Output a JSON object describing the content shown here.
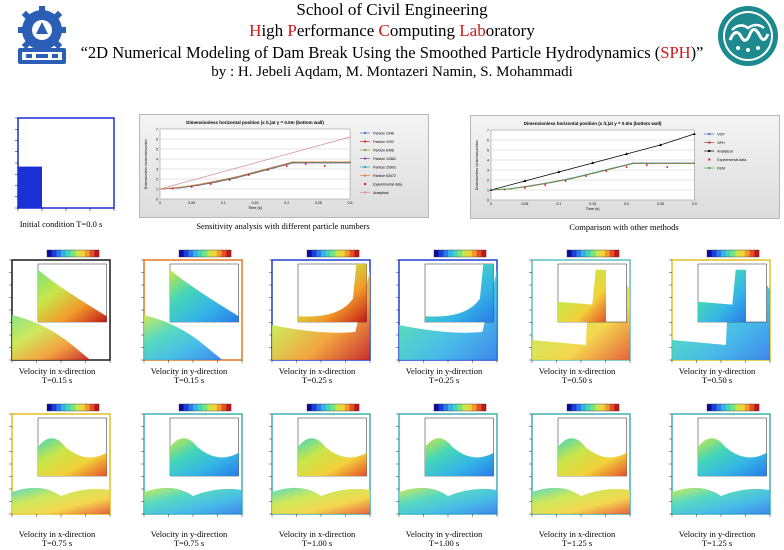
{
  "header": {
    "title_line1": "School of Civil Engineering",
    "lab": [
      {
        "t": "H",
        "red": true
      },
      {
        "t": "igh ",
        "red": false
      },
      {
        "t": "P",
        "red": true
      },
      {
        "t": "erformance ",
        "red": false
      },
      {
        "t": "C",
        "red": true
      },
      {
        "t": "omputing ",
        "red": false
      },
      {
        "t": "Lab",
        "red": true
      },
      {
        "t": "oratory",
        "red": false
      }
    ],
    "paper_title_pre": "“2D Numerical Modeling of Dam Break Using the Smoothed Particle Hydrodynamics (",
    "paper_title_acronym": "SPH",
    "paper_title_post": ")”",
    "authors": "by : H. Jebeli Aqdam, M. Montazeri Namin, S. Mohammadi"
  },
  "initial_condition": {
    "caption": "Initial condition T=0.0 s",
    "water_fraction_height": 0.46,
    "water_fraction_width": 0.25
  },
  "colors": {
    "blue": "#1a2fd6",
    "accent_red": "#d01818"
  },
  "chart_data": [
    {
      "type": "line",
      "title": "Dimensionless horizontal position (x /L)at y = 0.0m (bottom wall)",
      "caption": "Sensitivity analysis with different particle numbers",
      "xlabel": "Time (s)",
      "ylabel": "Dimensionless horizontal position",
      "xlim": [
        0,
        0.3
      ],
      "ylim": [
        0,
        7
      ],
      "xticks": [
        "0",
        "0.05",
        "0.1",
        "0.15",
        "0.2",
        "0.25",
        "0.3"
      ],
      "yticks": [
        "0",
        "1",
        "2",
        "3",
        "4",
        "5",
        "6",
        "7"
      ],
      "legend_position": "right",
      "series": [
        {
          "name": "Particle 1046",
          "color": "#4a6fd0",
          "x": [
            0,
            0.03,
            0.06,
            0.09,
            0.12,
            0.15,
            0.18,
            0.21,
            0.24,
            0.27,
            0.3
          ],
          "y": [
            1,
            1.1,
            1.35,
            1.7,
            2.1,
            2.6,
            3.1,
            3.6,
            3.6,
            3.6,
            3.6
          ]
        },
        {
          "name": "Particle 3192",
          "color": "#c03030",
          "x": [
            0,
            0.03,
            0.06,
            0.09,
            0.12,
            0.15,
            0.18,
            0.21,
            0.24,
            0.27,
            0.3
          ],
          "y": [
            1,
            1.12,
            1.38,
            1.72,
            2.12,
            2.62,
            3.12,
            3.62,
            3.62,
            3.62,
            3.62
          ]
        },
        {
          "name": "Particle 6498",
          "color": "#7aa040",
          "x": [
            0,
            0.03,
            0.06,
            0.09,
            0.12,
            0.15,
            0.18,
            0.21,
            0.24,
            0.27,
            0.3
          ],
          "y": [
            1,
            1.13,
            1.4,
            1.75,
            2.15,
            2.65,
            3.15,
            3.65,
            3.65,
            3.65,
            3.65
          ]
        },
        {
          "name": "Particle 12862",
          "color": "#7050a0",
          "x": [
            0,
            0.03,
            0.06,
            0.09,
            0.12,
            0.15,
            0.18,
            0.21,
            0.24,
            0.27,
            0.3
          ],
          "y": [
            1,
            1.14,
            1.42,
            1.77,
            2.18,
            2.68,
            3.18,
            3.68,
            3.68,
            3.68,
            3.68
          ]
        },
        {
          "name": "Particle 25992",
          "color": "#30a0c0",
          "x": [
            0,
            0.03,
            0.06,
            0.09,
            0.12,
            0.15,
            0.18,
            0.21,
            0.24,
            0.27,
            0.3
          ],
          "y": [
            1,
            1.15,
            1.44,
            1.8,
            2.2,
            2.7,
            3.2,
            3.7,
            3.7,
            3.7,
            3.7
          ]
        },
        {
          "name": "Particle 63072",
          "color": "#e08030",
          "x": [
            0,
            0.03,
            0.06,
            0.09,
            0.12,
            0.15,
            0.18,
            0.21,
            0.24,
            0.27,
            0.3
          ],
          "y": [
            1,
            1.16,
            1.45,
            1.82,
            2.22,
            2.72,
            3.22,
            3.72,
            3.72,
            3.72,
            3.72
          ]
        },
        {
          "name": "Experimental data",
          "color": "#e01010",
          "marker": "square",
          "line": false,
          "x": [
            0.02,
            0.05,
            0.08,
            0.11,
            0.14,
            0.17,
            0.2,
            0.23,
            0.26
          ],
          "y": [
            1.05,
            1.2,
            1.5,
            1.9,
            2.4,
            2.9,
            3.3,
            3.5,
            3.3
          ]
        },
        {
          "name": "Analytical",
          "color": "#d89090",
          "x": [
            0,
            0.3
          ],
          "y": [
            1,
            6.2
          ]
        }
      ]
    },
    {
      "type": "line",
      "title": "Dimensionless horizontal position (x /L)at y = 0.0m (bottom wall)",
      "caption": "Comparison with other methods",
      "xlabel": "Time (s)",
      "ylabel": "Dimensionless horizontal position",
      "xlim": [
        0,
        0.3
      ],
      "ylim": [
        0,
        7
      ],
      "xticks": [
        "0",
        "0.05",
        "0.1",
        "0.15",
        "0.2",
        "0.25",
        "0.3"
      ],
      "yticks": [
        "0",
        "1",
        "2",
        "3",
        "4",
        "5",
        "6",
        "7"
      ],
      "legend_position": "right",
      "series": [
        {
          "name": "VOF",
          "color": "#4a6fd0",
          "x": [
            0,
            0.03,
            0.06,
            0.09,
            0.12,
            0.15,
            0.18,
            0.21,
            0.24,
            0.27,
            0.3
          ],
          "y": [
            1,
            1.15,
            1.45,
            1.8,
            2.2,
            2.7,
            3.2,
            3.7,
            3.7,
            3.7,
            3.7
          ]
        },
        {
          "name": "SPH",
          "color": "#c03030",
          "x": [
            0,
            0.03,
            0.06,
            0.09,
            0.12,
            0.15,
            0.18,
            0.21,
            0.24,
            0.27,
            0.3
          ],
          "y": [
            1,
            1.12,
            1.4,
            1.75,
            2.15,
            2.65,
            3.15,
            3.65,
            3.65,
            3.65,
            3.65
          ]
        },
        {
          "name": "Analytical",
          "color": "#000000",
          "marker": "triangle",
          "x": [
            0,
            0.05,
            0.1,
            0.15,
            0.2,
            0.25,
            0.3
          ],
          "y": [
            1,
            1.9,
            2.8,
            3.7,
            4.6,
            5.5,
            6.6
          ]
        },
        {
          "name": "Experimental data",
          "color": "#e01010",
          "marker": "square",
          "line": false,
          "x": [
            0.02,
            0.05,
            0.08,
            0.11,
            0.14,
            0.17,
            0.2,
            0.23,
            0.26
          ],
          "y": [
            1.05,
            1.2,
            1.5,
            1.9,
            2.4,
            2.9,
            3.3,
            3.5,
            3.3
          ]
        },
        {
          "name": "FEM",
          "color": "#40b040",
          "x": [
            0,
            0.03,
            0.06,
            0.09,
            0.12,
            0.15,
            0.18,
            0.21,
            0.24,
            0.27,
            0.3
          ],
          "y": [
            1,
            1.14,
            1.43,
            1.78,
            2.18,
            2.68,
            3.18,
            3.68,
            3.68,
            3.68,
            3.68
          ]
        }
      ]
    }
  ],
  "snapshots_row1": [
    {
      "caption1": "Velocity in x-direction",
      "caption2": "T=0.15 s",
      "frame": "#1a1a1a",
      "variant": "x015"
    },
    {
      "caption1": "Velocity in y-direction",
      "caption2": "T=0.15 s",
      "frame": "#e07820",
      "variant": "y015"
    },
    {
      "caption1": "Velocity in x-direction",
      "caption2": "T=0.25 s",
      "frame": "#2040d0",
      "variant": "x025"
    },
    {
      "caption1": "Velocity in y-direction",
      "caption2": "T=0.25 s",
      "frame": "#2040d0",
      "variant": "y025"
    },
    {
      "caption1": "Velocity in x-direction",
      "caption2": "T=0.50 s",
      "frame": "#60c0c0",
      "variant": "x050"
    },
    {
      "caption1": "Velocity in y-direction",
      "caption2": "T=0.50 s",
      "frame": "#e0c020",
      "variant": "y050"
    }
  ],
  "snapshots_row2": [
    {
      "caption1": "Velocity in x-direction",
      "caption2": "T=0.75 s",
      "frame": "#e0c020",
      "variant": "x075"
    },
    {
      "caption1": "Velocity in y-direction",
      "caption2": "T=0.75 s",
      "frame": "#40b0b0",
      "variant": "y075"
    },
    {
      "caption1": "Velocity in x-direction",
      "caption2": "T=1.00 s",
      "frame": "#40b0b0",
      "variant": "x100"
    },
    {
      "caption1": "Velocity in y-direction",
      "caption2": "T=1.00 s",
      "frame": "#40b0b0",
      "variant": "y100"
    },
    {
      "caption1": "Velocity in x-direction",
      "caption2": "T=1.25 s",
      "frame": "#40b0b0",
      "variant": "x125"
    },
    {
      "caption1": "Velocity in y-direction",
      "caption2": "T=1.25 s",
      "frame": "#40b0b0",
      "variant": "y125"
    }
  ],
  "logos": {
    "left": "university-gear-emblem-icon",
    "right": "university-of-tehran-emblem-icon"
  }
}
